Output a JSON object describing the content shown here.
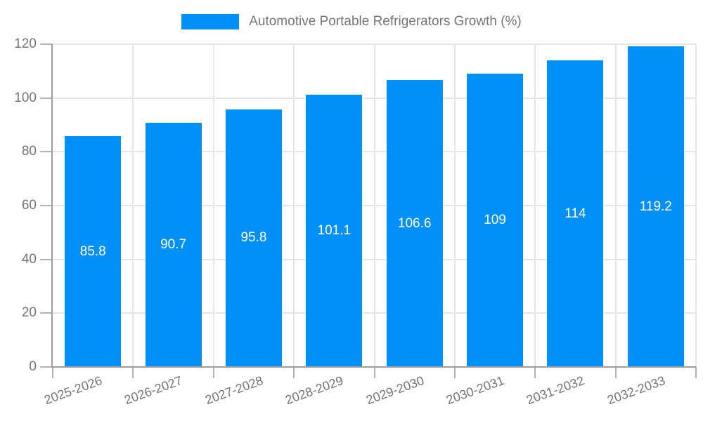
{
  "legend": {
    "label": "Automotive Portable Refrigerators Growth (%)"
  },
  "chart_data": {
    "type": "bar",
    "title": "Automotive Portable Refrigerators Growth (%)",
    "categories": [
      "2025-2026",
      "2026-2027",
      "2027-2028",
      "2028-2029",
      "2029-2030",
      "2030-2031",
      "2031-2032",
      "2032-2033"
    ],
    "values": [
      85.8,
      90.7,
      95.8,
      101.1,
      106.6,
      109,
      114,
      119.2
    ],
    "value_labels": [
      "85.8",
      "90.7",
      "95.8",
      "101.1",
      "106.6",
      "109",
      "114",
      "119.2"
    ],
    "xlabel": "",
    "ylabel": "",
    "ylim": [
      0,
      120
    ],
    "yticks": [
      0,
      20,
      40,
      60,
      80,
      100,
      120
    ],
    "grid": true,
    "legend_position": "top",
    "bar_color": "#0090F8",
    "value_label_color": "#ffffff",
    "axis_text_color": "#757575",
    "gridline_color": "#e6e6e6",
    "axis_line_color": "#9e9e9e",
    "background_color": "#ffffff"
  }
}
